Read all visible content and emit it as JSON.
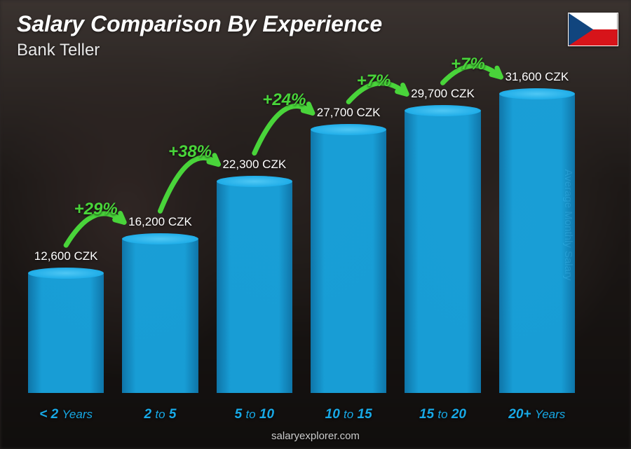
{
  "title": "Salary Comparison By Experience",
  "subtitle": "Bank Teller",
  "side_axis_label": "Average Monthly Salary",
  "footer": "salaryexplorer.com",
  "flag": {
    "country": "Czech Republic"
  },
  "colors": {
    "bar_fill": "#18a9e6",
    "bar_fill_dark": "#0e7db5",
    "bar_top": "#4fc7f4",
    "xlabel": "#18a9e6",
    "increase": "#49d43a",
    "value_text": "#ffffff",
    "title_text": "#ffffff",
    "background_overlay": "rgba(0,0,0,0.35)"
  },
  "chart": {
    "type": "bar",
    "ymax": 34000,
    "bars": [
      {
        "label_html": "< 2 Years",
        "label_prefix": "<",
        "label_num": "2",
        "label_suffix": "Years",
        "value": 12600,
        "value_label": "12,600 CZK"
      },
      {
        "label_html": "2 to 5",
        "label_prefix": "2",
        "label_mid": "to",
        "label_num": "5",
        "value": 16200,
        "value_label": "16,200 CZK"
      },
      {
        "label_html": "5 to 10",
        "label_prefix": "5",
        "label_mid": "to",
        "label_num": "10",
        "value": 22300,
        "value_label": "22,300 CZK"
      },
      {
        "label_html": "10 to 15",
        "label_prefix": "10",
        "label_mid": "to",
        "label_num": "15",
        "value": 27700,
        "value_label": "27,700 CZK"
      },
      {
        "label_html": "15 to 20",
        "label_prefix": "15",
        "label_mid": "to",
        "label_num": "20",
        "value": 29700,
        "value_label": "29,700 CZK"
      },
      {
        "label_html": "20+ Years",
        "label_prefix": "20+",
        "label_suffix": "Years",
        "value": 31600,
        "value_label": "31,600 CZK"
      }
    ],
    "increases": [
      {
        "from": 0,
        "to": 1,
        "pct": "+29%"
      },
      {
        "from": 1,
        "to": 2,
        "pct": "+38%"
      },
      {
        "from": 2,
        "to": 3,
        "pct": "+24%"
      },
      {
        "from": 3,
        "to": 4,
        "pct": "+7%"
      },
      {
        "from": 4,
        "to": 5,
        "pct": "+7%"
      }
    ]
  },
  "typography": {
    "title_fontsize": 32,
    "subtitle_fontsize": 24,
    "value_fontsize": 17,
    "xlabel_fontsize": 19,
    "increase_fontsize": 24,
    "side_fontsize": 15,
    "footer_fontsize": 15
  }
}
